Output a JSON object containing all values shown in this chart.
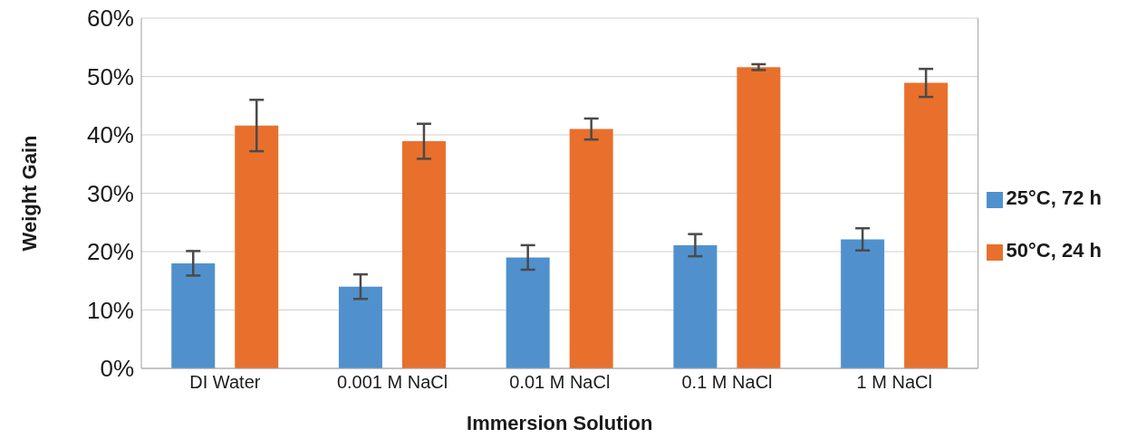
{
  "chart_data": {
    "type": "bar",
    "xlabel": "Immersion Solution",
    "ylabel": "Weight Gain",
    "categories": [
      "DI Water",
      "0.001 M NaCl",
      "0.01 M NaCl",
      "0.1 M NaCl",
      "1 M NaCl"
    ],
    "series": [
      {
        "name": "25°C, 72 h",
        "color": "#5091cd",
        "values": [
          18.0,
          14.0,
          19.0,
          21.1,
          22.1
        ],
        "errors": [
          2.1,
          2.1,
          2.1,
          1.9,
          1.9
        ]
      },
      {
        "name": "50°C, 24 h",
        "color": "#e8702c",
        "values": [
          41.6,
          38.9,
          41.0,
          51.6,
          48.9
        ],
        "errors": [
          4.4,
          3.0,
          1.8,
          0.5,
          2.4
        ]
      }
    ],
    "ylim": [
      0,
      60
    ],
    "yticks": [
      {
        "value": 0,
        "label": "0%"
      },
      {
        "value": 10,
        "label": "10%"
      },
      {
        "value": 20,
        "label": "20%"
      },
      {
        "value": 30,
        "label": "30%"
      },
      {
        "value": 40,
        "label": "40%"
      },
      {
        "value": 50,
        "label": "50%"
      },
      {
        "value": 60,
        "label": "60%"
      }
    ],
    "grid": "y",
    "legend": "right"
  }
}
